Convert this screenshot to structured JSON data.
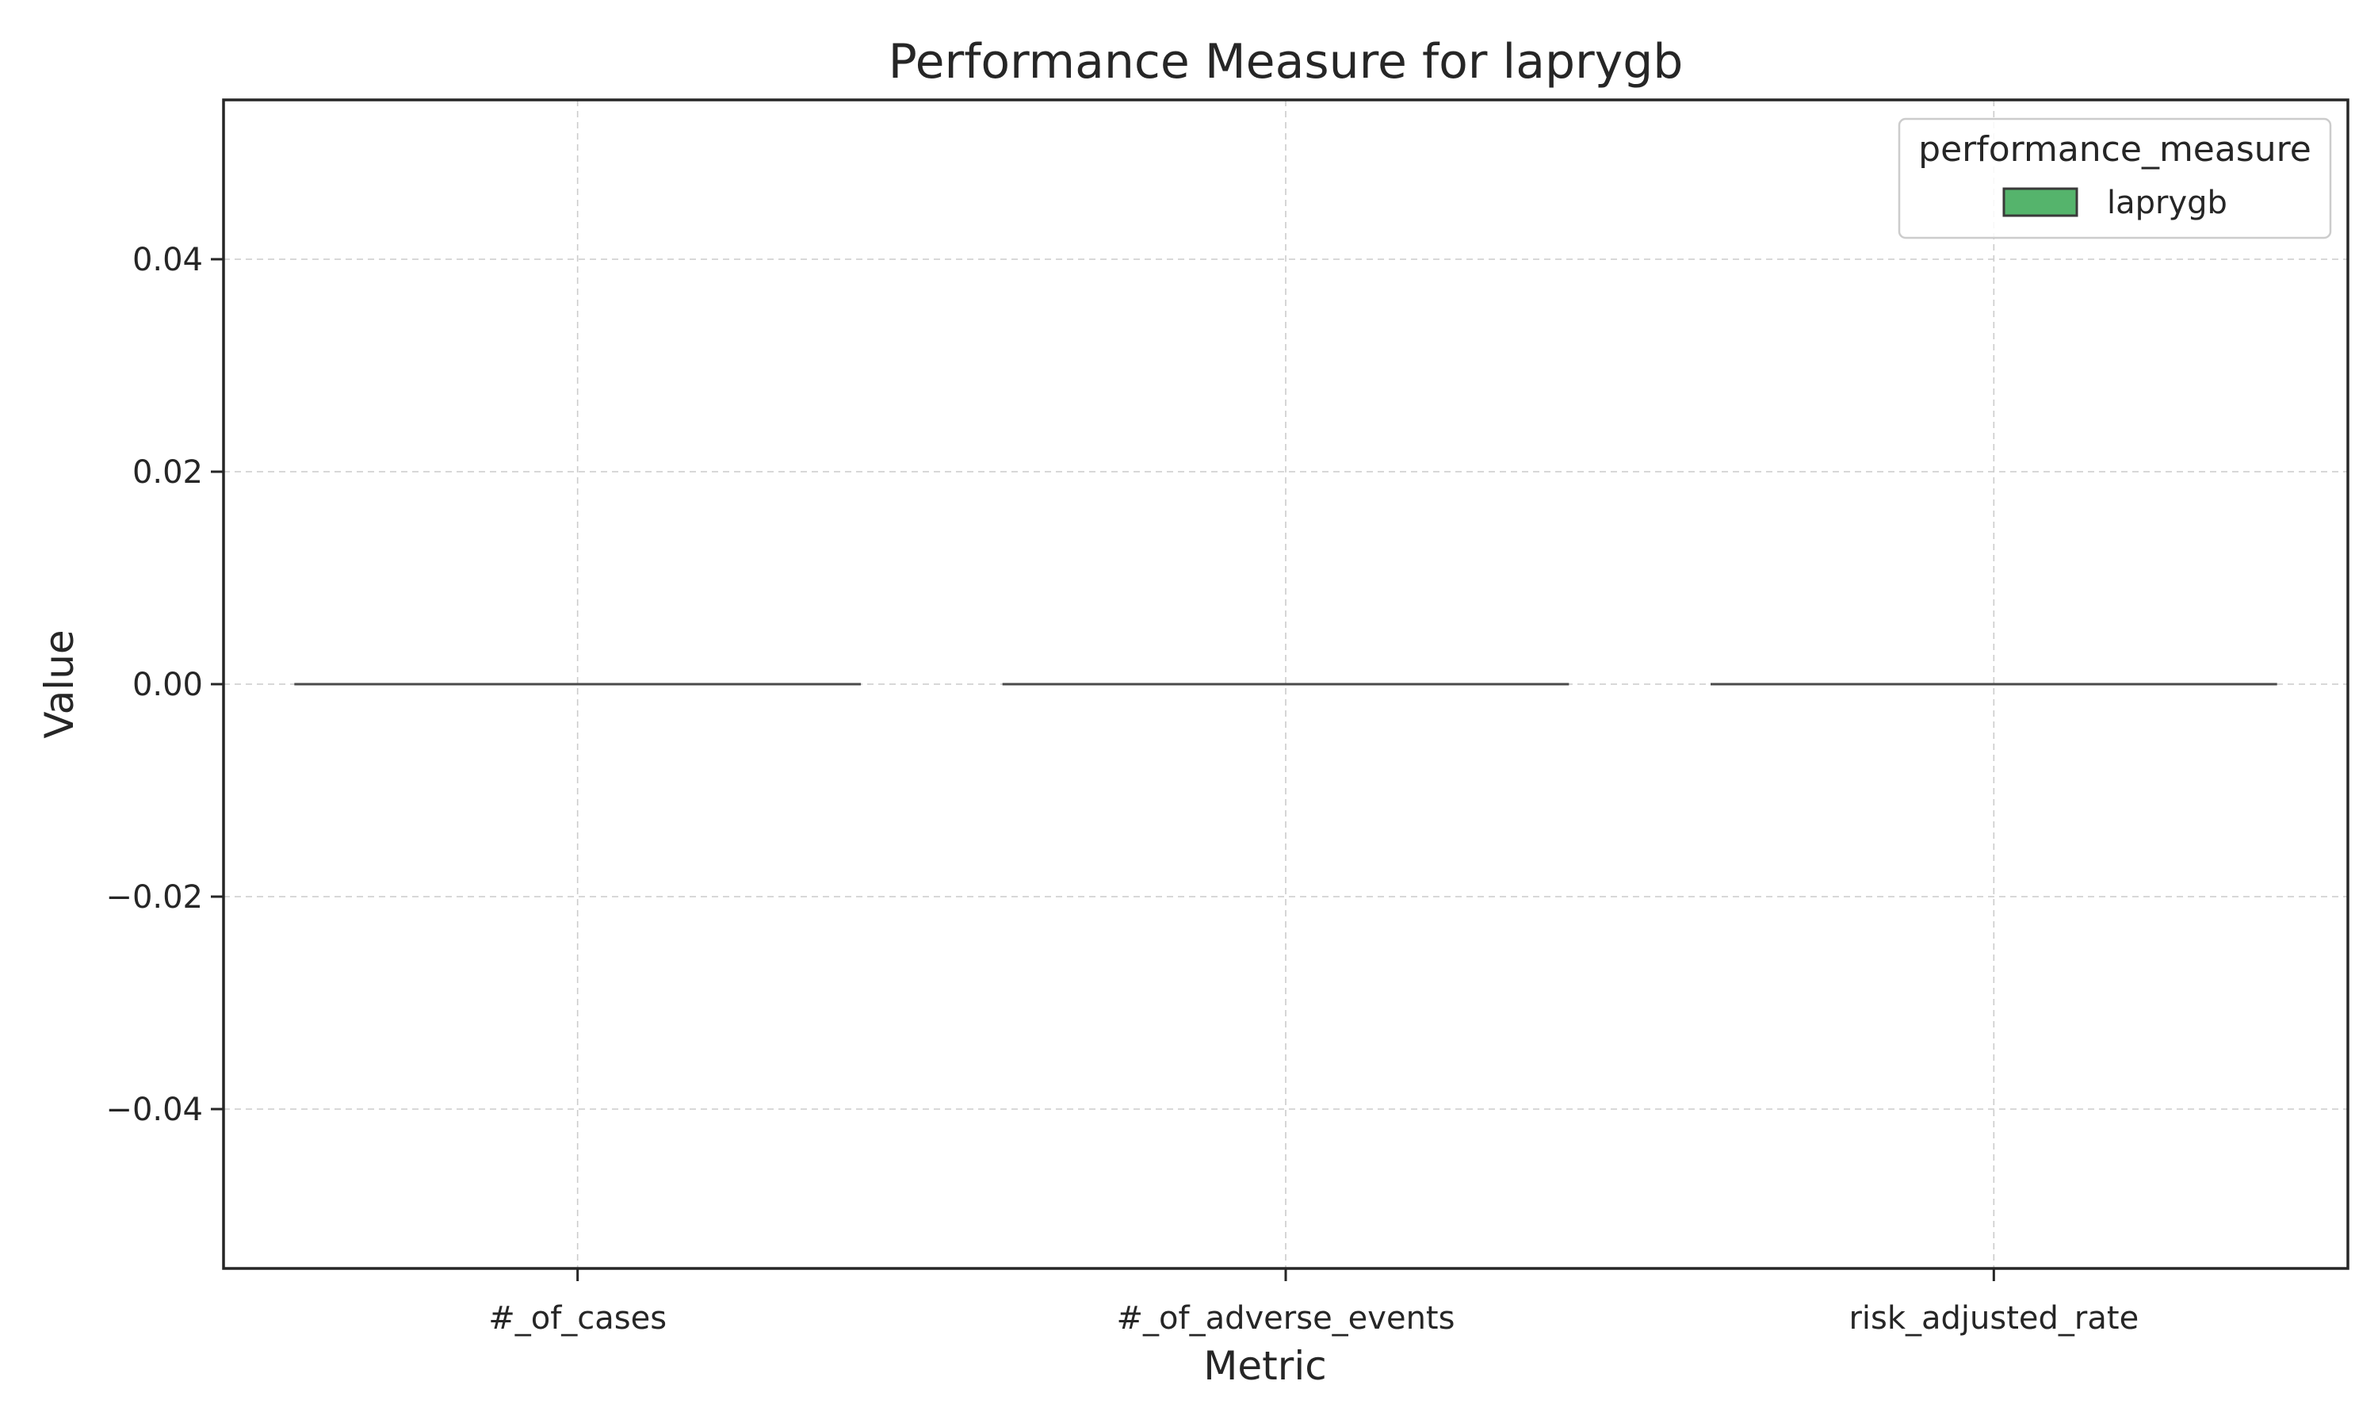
{
  "chart_data": {
    "type": "bar",
    "title": "Performance Measure for laprygb",
    "xlabel": "Metric",
    "ylabel": "Value",
    "categories": [
      "#_of_cases",
      "#_of_adverse_events",
      "risk_adjusted_rate"
    ],
    "series": [
      {
        "name": "laprygb",
        "values": [
          0,
          0,
          0
        ],
        "color": "#55b46c"
      }
    ],
    "ylim": [
      -0.055,
      0.055
    ],
    "yticks": [
      -0.04,
      -0.02,
      0.0,
      0.02,
      0.04
    ],
    "ytick_labels": [
      "−0.04",
      "−0.02",
      "0.00",
      "0.02",
      "0.04"
    ],
    "grid": true,
    "legend": {
      "title": "performance_measure",
      "placement": "top-right"
    }
  }
}
